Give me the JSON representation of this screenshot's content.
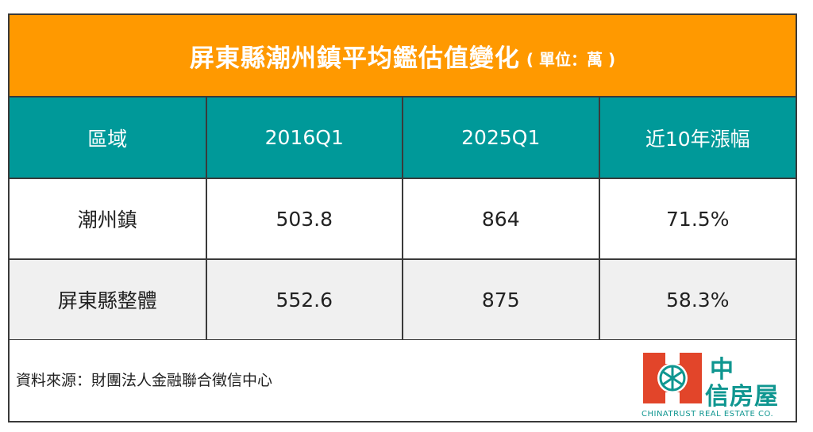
{
  "title": {
    "main": "屏東縣潮州鎮平均鑑估值變化",
    "unit": "( 單位：萬 )"
  },
  "chart_data": {
    "type": "table",
    "columns": [
      "區域",
      "2016Q1",
      "2025Q1",
      "近10年漲幅"
    ],
    "rows": [
      {
        "region": "潮州鎮",
        "q2016": "503.8",
        "q2025": "864",
        "change": "71.5%"
      },
      {
        "region": "屏東縣整體",
        "q2016": "552.6",
        "q2025": "875",
        "change": "58.3%"
      }
    ]
  },
  "footer": {
    "source": "資料來源：財團法人金融聯合徵信中心"
  },
  "logo": {
    "name_line1": "中",
    "name_line2": "信房屋",
    "name_en": "CHINATRUST REAL ESTATE CO.",
    "icon": "chinatrust-logo-icon"
  },
  "colors": {
    "title_bg": "#ff9900",
    "header_bg": "#009999",
    "logo_red": "#e2452a",
    "logo_teal": "#0f9690"
  }
}
